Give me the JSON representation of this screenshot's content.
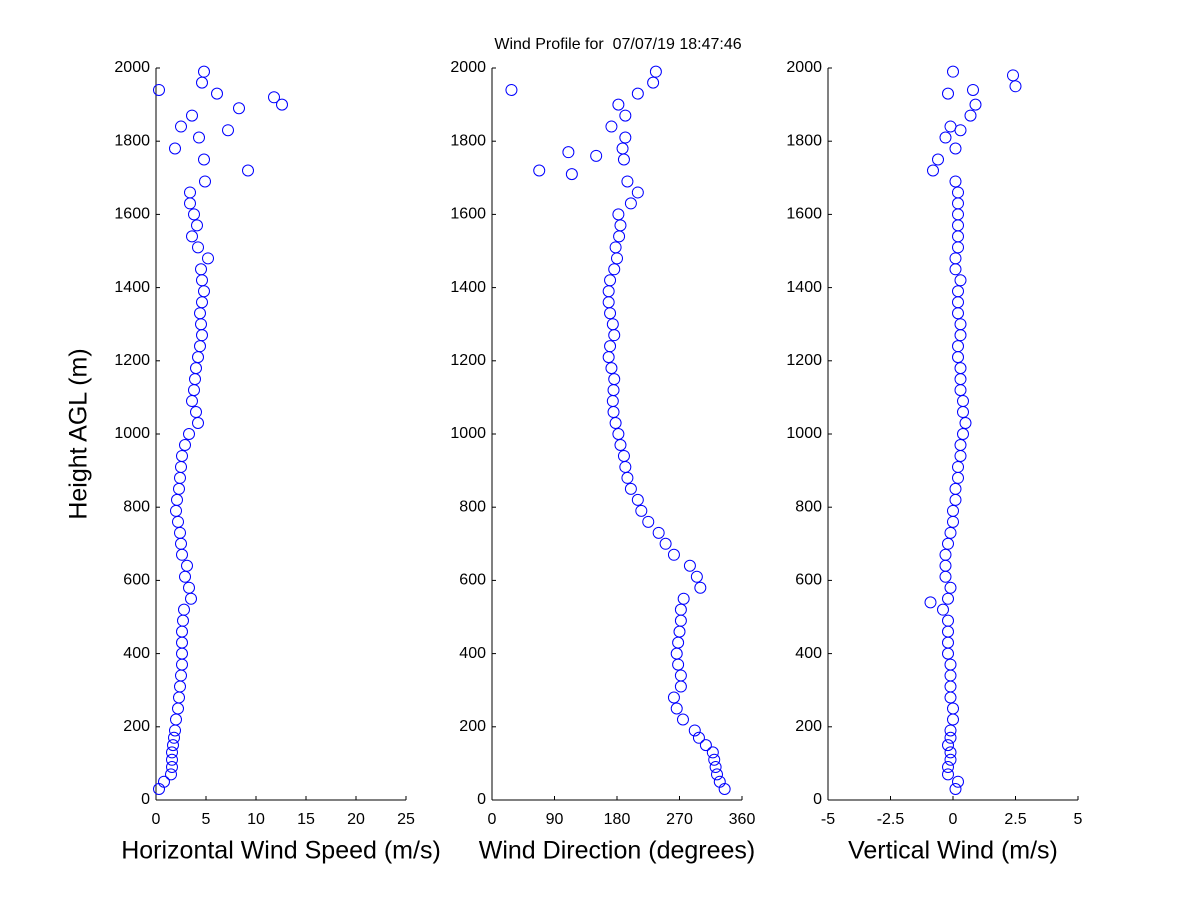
{
  "chart_data": [
    {
      "type": "scatter",
      "title": "Wind Profile for  07/07/19 18:47:46",
      "xlabel": "Horizontal Wind Speed (m/s)",
      "ylabel": "Height AGL (m)",
      "color": "#0000ff",
      "xlim": [
        0,
        25
      ],
      "xticks": [
        0,
        5,
        10,
        15,
        20,
        25
      ],
      "ylim": [
        0,
        2000
      ],
      "yticks": [
        0,
        200,
        400,
        600,
        800,
        1000,
        1200,
        1400,
        1600,
        1800,
        2000
      ],
      "x": [
        0.3,
        0.8,
        1.5,
        1.6,
        1.6,
        1.6,
        1.7,
        1.8,
        1.9,
        2.0,
        2.2,
        2.3,
        2.4,
        2.5,
        2.6,
        2.6,
        2.6,
        2.6,
        2.7,
        2.8,
        3.5,
        3.3,
        2.9,
        3.1,
        2.6,
        2.5,
        2.4,
        2.2,
        2.0,
        2.1,
        2.3,
        2.4,
        2.5,
        2.6,
        2.9,
        3.3,
        4.2,
        4.0,
        3.6,
        3.8,
        3.9,
        4.0,
        4.2,
        4.4,
        4.6,
        4.5,
        4.4,
        4.6,
        4.8,
        4.6,
        4.5,
        5.2,
        4.2,
        3.6,
        4.1,
        3.8,
        3.4,
        3.4,
        4.9,
        9.2,
        4.8,
        1.9,
        4.3,
        2.5,
        3.6,
        12.6,
        6.1,
        4.6,
        4.8,
        0.3,
        11.8,
        8.3,
        7.2
      ],
      "y": [
        30,
        50,
        70,
        90,
        110,
        130,
        150,
        170,
        190,
        220,
        250,
        280,
        310,
        340,
        370,
        400,
        430,
        460,
        490,
        520,
        550,
        580,
        610,
        640,
        670,
        700,
        730,
        760,
        790,
        820,
        850,
        880,
        910,
        940,
        970,
        1000,
        1030,
        1060,
        1090,
        1120,
        1150,
        1180,
        1210,
        1240,
        1270,
        1300,
        1330,
        1360,
        1390,
        1420,
        1450,
        1480,
        1510,
        1540,
        1570,
        1600,
        1630,
        1660,
        1690,
        1720,
        1750,
        1780,
        1810,
        1840,
        1870,
        1900,
        1930,
        1960,
        1990,
        1940,
        1920,
        1890,
        1830
      ]
    },
    {
      "type": "scatter",
      "xlabel": "Wind Direction (degrees)",
      "color": "#0000ff",
      "xlim": [
        0,
        360
      ],
      "xticks": [
        0,
        90,
        180,
        270,
        360
      ],
      "ylim": [
        0,
        2000
      ],
      "yticks": [
        0,
        200,
        400,
        600,
        800,
        1000,
        1200,
        1400,
        1600,
        1800,
        2000
      ],
      "x": [
        335,
        328,
        324,
        322,
        320,
        318,
        308,
        298,
        292,
        275,
        266,
        262,
        272,
        272,
        268,
        266,
        268,
        270,
        272,
        272,
        276,
        300,
        295,
        285,
        262,
        250,
        240,
        225,
        215,
        210,
        200,
        195,
        192,
        190,
        185,
        182,
        178,
        175,
        174,
        175,
        176,
        172,
        168,
        170,
        176,
        174,
        170,
        168,
        168,
        170,
        176,
        180,
        178,
        183,
        185,
        182,
        200,
        210,
        195,
        68,
        190,
        188,
        192,
        172,
        192,
        182,
        210,
        232,
        236,
        28,
        110,
        115,
        150
      ],
      "y": [
        30,
        50,
        70,
        90,
        110,
        130,
        150,
        170,
        190,
        220,
        250,
        280,
        310,
        340,
        370,
        400,
        430,
        460,
        490,
        520,
        550,
        580,
        610,
        640,
        670,
        700,
        730,
        760,
        790,
        820,
        850,
        880,
        910,
        940,
        970,
        1000,
        1030,
        1060,
        1090,
        1120,
        1150,
        1180,
        1210,
        1240,
        1270,
        1300,
        1330,
        1360,
        1390,
        1420,
        1450,
        1480,
        1510,
        1540,
        1570,
        1600,
        1630,
        1660,
        1690,
        1720,
        1750,
        1780,
        1810,
        1840,
        1870,
        1900,
        1930,
        1960,
        1990,
        1940,
        1770,
        1710,
        1760
      ]
    },
    {
      "type": "scatter",
      "xlabel": "Vertical Wind (m/s)",
      "color": "#0000ff",
      "xlim": [
        -5,
        5
      ],
      "xticks": [
        -5,
        -2.5,
        0,
        2.5,
        5
      ],
      "ylim": [
        0,
        2000
      ],
      "yticks": [
        0,
        200,
        400,
        600,
        800,
        1000,
        1200,
        1400,
        1600,
        1800,
        2000
      ],
      "x": [
        0.1,
        0.2,
        -0.2,
        -0.2,
        -0.1,
        -0.1,
        -0.2,
        -0.1,
        -0.1,
        0.0,
        0.0,
        -0.1,
        -0.1,
        -0.1,
        -0.1,
        -0.2,
        -0.2,
        -0.2,
        -0.2,
        -0.4,
        -0.2,
        -0.1,
        -0.3,
        -0.3,
        -0.3,
        -0.2,
        -0.1,
        0.0,
        0.0,
        0.1,
        0.1,
        0.2,
        0.2,
        0.3,
        0.3,
        0.4,
        0.5,
        0.4,
        0.4,
        0.3,
        0.3,
        0.3,
        0.2,
        0.2,
        0.3,
        0.3,
        0.2,
        0.2,
        0.2,
        0.3,
        0.1,
        0.1,
        0.2,
        0.2,
        0.2,
        0.2,
        0.2,
        0.2,
        0.1,
        -0.8,
        -0.6,
        0.1,
        -0.3,
        -0.1,
        0.7,
        0.9,
        -0.2,
        2.5,
        0.0,
        -0.9,
        2.4,
        0.8,
        0.3
      ],
      "y": [
        30,
        50,
        70,
        90,
        110,
        130,
        150,
        170,
        190,
        220,
        250,
        280,
        310,
        340,
        370,
        400,
        430,
        460,
        490,
        520,
        550,
        580,
        610,
        640,
        670,
        700,
        730,
        760,
        790,
        820,
        850,
        880,
        910,
        940,
        970,
        1000,
        1030,
        1060,
        1090,
        1120,
        1150,
        1180,
        1210,
        1240,
        1270,
        1300,
        1330,
        1360,
        1390,
        1420,
        1450,
        1480,
        1510,
        1540,
        1570,
        1600,
        1630,
        1660,
        1690,
        1720,
        1750,
        1780,
        1810,
        1840,
        1870,
        1900,
        1930,
        1950,
        1990,
        540,
        1980,
        1940,
        1830
      ]
    }
  ]
}
